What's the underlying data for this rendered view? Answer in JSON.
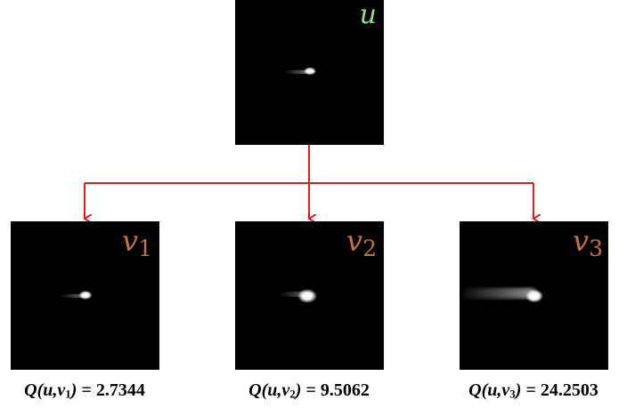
{
  "colors": {
    "arrow": "#e01b1b",
    "source_label": "#8fe08a",
    "target_label": "#c8713a",
    "panel_bg": "#000000"
  },
  "source": {
    "label": "u"
  },
  "targets": [
    {
      "label_letter": "v",
      "label_sub": "1",
      "caption_fn": "Q(u,v",
      "caption_sub": "1",
      "caption_close": ")",
      "caption_value": "= 2.7344"
    },
    {
      "label_letter": "v",
      "label_sub": "2",
      "caption_fn": "Q(u,v",
      "caption_sub": "2",
      "caption_close": ")",
      "caption_value": "= 9.5062"
    },
    {
      "label_letter": "v",
      "label_sub": "3",
      "caption_fn": "Q(u,v",
      "caption_sub": "3",
      "caption_close": ")",
      "caption_value": "= 24.2503"
    }
  ]
}
